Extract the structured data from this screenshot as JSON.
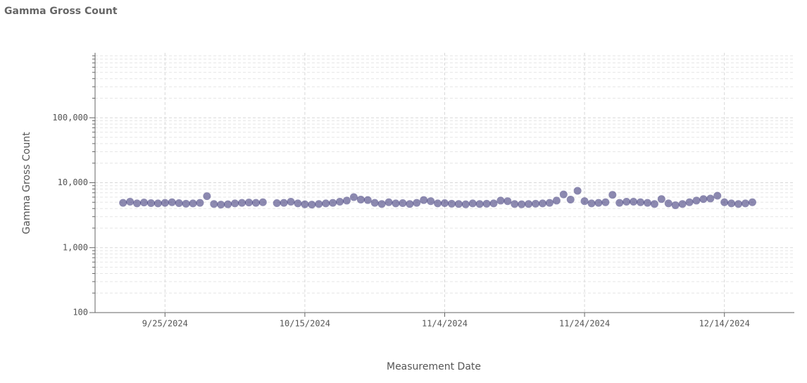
{
  "chart_data": {
    "type": "scatter",
    "title": "Gamma Gross Count",
    "x_label": "Measurement Date",
    "y_label": "Gamma Gross Count",
    "log_y": true,
    "grid": true,
    "minor_grid": true,
    "xlim": [
      "2024-09-15",
      "2024-12-24"
    ],
    "xticks": [
      {
        "value": "2024-09-25",
        "label": "9/25/2024"
      },
      {
        "value": "2024-10-15",
        "label": "10/15/2024"
      },
      {
        "value": "2024-11-04",
        "label": "11/4/2024"
      },
      {
        "value": "2024-11-24",
        "label": "11/24/2024"
      },
      {
        "value": "2024-12-14",
        "label": "12/14/2024"
      }
    ],
    "ylim": [
      100,
      1000000
    ],
    "yticks": [
      100,
      {
        "value": 1000,
        "label": "1,000"
      },
      {
        "value": 10000,
        "label": "10,000"
      },
      {
        "value": 100000,
        "label": "100,000"
      }
    ],
    "series": [
      {
        "name": "Gamma Gross Count",
        "color": "#2d2870",
        "x": [
          "2024-09-19",
          "2024-09-20",
          "2024-09-21",
          "2024-09-22",
          "2024-09-23",
          "2024-09-24",
          "2024-09-25",
          "2024-09-26",
          "2024-09-27",
          "2024-09-28",
          "2024-09-29",
          "2024-09-30",
          "2024-10-01",
          "2024-10-02",
          "2024-10-03",
          "2024-10-04",
          "2024-10-05",
          "2024-10-06",
          "2024-10-07",
          "2024-10-08",
          "2024-10-09",
          "2024-10-11",
          "2024-10-12",
          "2024-10-13",
          "2024-10-14",
          "2024-10-15",
          "2024-10-16",
          "2024-10-17",
          "2024-10-18",
          "2024-10-19",
          "2024-10-20",
          "2024-10-21",
          "2024-10-22",
          "2024-10-23",
          "2024-10-24",
          "2024-10-25",
          "2024-10-26",
          "2024-10-27",
          "2024-10-28",
          "2024-10-29",
          "2024-10-30",
          "2024-10-31",
          "2024-11-01",
          "2024-11-02",
          "2024-11-03",
          "2024-11-04",
          "2024-11-05",
          "2024-11-06",
          "2024-11-07",
          "2024-11-08",
          "2024-11-09",
          "2024-11-10",
          "2024-11-11",
          "2024-11-12",
          "2024-11-13",
          "2024-11-14",
          "2024-11-15",
          "2024-11-16",
          "2024-11-17",
          "2024-11-18",
          "2024-11-19",
          "2024-11-20",
          "2024-11-21",
          "2024-11-22",
          "2024-11-23",
          "2024-11-24",
          "2024-11-25",
          "2024-11-26",
          "2024-11-27",
          "2024-11-28",
          "2024-11-29",
          "2024-11-30",
          "2024-12-01",
          "2024-12-02",
          "2024-12-03",
          "2024-12-04",
          "2024-12-05",
          "2024-12-06",
          "2024-12-07",
          "2024-12-08",
          "2024-12-09",
          "2024-12-10",
          "2024-12-11",
          "2024-12-12",
          "2024-12-13",
          "2024-12-14",
          "2024-12-15",
          "2024-12-16",
          "2024-12-17",
          "2024-12-18"
        ],
        "values": [
          4900,
          5100,
          4800,
          4950,
          4850,
          4800,
          4900,
          5000,
          4850,
          4750,
          4800,
          4900,
          6200,
          4700,
          4600,
          4650,
          4800,
          4900,
          4950,
          4900,
          5000,
          4850,
          4900,
          5100,
          4800,
          4650,
          4600,
          4700,
          4800,
          4900,
          5100,
          5300,
          6000,
          5500,
          5400,
          4900,
          4700,
          5000,
          4800,
          4850,
          4700,
          4900,
          5400,
          5200,
          4800,
          4850,
          4750,
          4700,
          4650,
          4800,
          4700,
          4750,
          4800,
          5300,
          5200,
          4700,
          4650,
          4700,
          4750,
          4800,
          4900,
          5300,
          6600,
          5500,
          7500,
          5200,
          4800,
          4900,
          5000,
          6500,
          4900,
          5100,
          5100,
          5000,
          4900,
          4700,
          5600,
          4800,
          4500,
          4700,
          5000,
          5300,
          5600,
          5700,
          6300,
          5000,
          4800,
          4700,
          4800,
          5000
        ]
      }
    ]
  }
}
